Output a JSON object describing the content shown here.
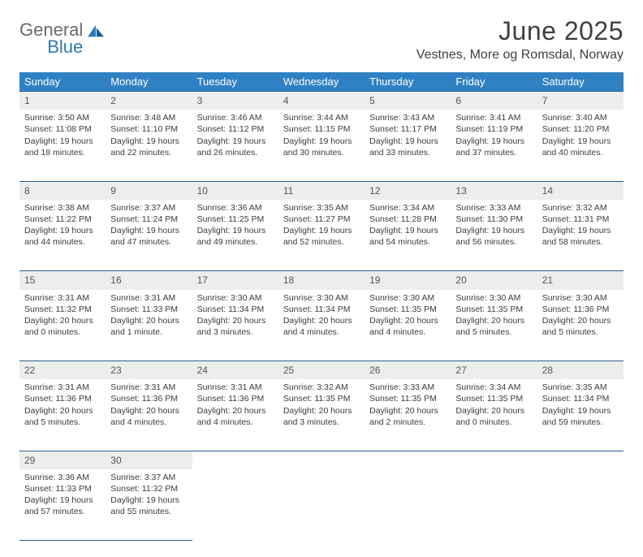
{
  "brand": {
    "general": "General",
    "blue": "Blue"
  },
  "title": "June 2025",
  "location": "Vestnes, More og Romsdal, Norway",
  "colors": {
    "header_bg": "#3081c3",
    "header_text": "#ffffff",
    "daynum_bg": "#eceded",
    "divider": "#2b5f8f",
    "logo_gray": "#6a6a6a",
    "logo_blue": "#2f79b9"
  },
  "weekdays": [
    "Sunday",
    "Monday",
    "Tuesday",
    "Wednesday",
    "Thursday",
    "Friday",
    "Saturday"
  ],
  "weeks": [
    [
      {
        "n": "1",
        "sr": "3:50 AM",
        "ss": "11:08 PM",
        "dl": "19 hours and 18 minutes."
      },
      {
        "n": "2",
        "sr": "3:48 AM",
        "ss": "11:10 PM",
        "dl": "19 hours and 22 minutes."
      },
      {
        "n": "3",
        "sr": "3:46 AM",
        "ss": "11:12 PM",
        "dl": "19 hours and 26 minutes."
      },
      {
        "n": "4",
        "sr": "3:44 AM",
        "ss": "11:15 PM",
        "dl": "19 hours and 30 minutes."
      },
      {
        "n": "5",
        "sr": "3:43 AM",
        "ss": "11:17 PM",
        "dl": "19 hours and 33 minutes."
      },
      {
        "n": "6",
        "sr": "3:41 AM",
        "ss": "11:19 PM",
        "dl": "19 hours and 37 minutes."
      },
      {
        "n": "7",
        "sr": "3:40 AM",
        "ss": "11:20 PM",
        "dl": "19 hours and 40 minutes."
      }
    ],
    [
      {
        "n": "8",
        "sr": "3:38 AM",
        "ss": "11:22 PM",
        "dl": "19 hours and 44 minutes."
      },
      {
        "n": "9",
        "sr": "3:37 AM",
        "ss": "11:24 PM",
        "dl": "19 hours and 47 minutes."
      },
      {
        "n": "10",
        "sr": "3:36 AM",
        "ss": "11:25 PM",
        "dl": "19 hours and 49 minutes."
      },
      {
        "n": "11",
        "sr": "3:35 AM",
        "ss": "11:27 PM",
        "dl": "19 hours and 52 minutes."
      },
      {
        "n": "12",
        "sr": "3:34 AM",
        "ss": "11:28 PM",
        "dl": "19 hours and 54 minutes."
      },
      {
        "n": "13",
        "sr": "3:33 AM",
        "ss": "11:30 PM",
        "dl": "19 hours and 56 minutes."
      },
      {
        "n": "14",
        "sr": "3:32 AM",
        "ss": "11:31 PM",
        "dl": "19 hours and 58 minutes."
      }
    ],
    [
      {
        "n": "15",
        "sr": "3:31 AM",
        "ss": "11:32 PM",
        "dl": "20 hours and 0 minutes."
      },
      {
        "n": "16",
        "sr": "3:31 AM",
        "ss": "11:33 PM",
        "dl": "20 hours and 1 minute."
      },
      {
        "n": "17",
        "sr": "3:30 AM",
        "ss": "11:34 PM",
        "dl": "20 hours and 3 minutes."
      },
      {
        "n": "18",
        "sr": "3:30 AM",
        "ss": "11:34 PM",
        "dl": "20 hours and 4 minutes."
      },
      {
        "n": "19",
        "sr": "3:30 AM",
        "ss": "11:35 PM",
        "dl": "20 hours and 4 minutes."
      },
      {
        "n": "20",
        "sr": "3:30 AM",
        "ss": "11:35 PM",
        "dl": "20 hours and 5 minutes."
      },
      {
        "n": "21",
        "sr": "3:30 AM",
        "ss": "11:36 PM",
        "dl": "20 hours and 5 minutes."
      }
    ],
    [
      {
        "n": "22",
        "sr": "3:31 AM",
        "ss": "11:36 PM",
        "dl": "20 hours and 5 minutes."
      },
      {
        "n": "23",
        "sr": "3:31 AM",
        "ss": "11:36 PM",
        "dl": "20 hours and 4 minutes."
      },
      {
        "n": "24",
        "sr": "3:31 AM",
        "ss": "11:36 PM",
        "dl": "20 hours and 4 minutes."
      },
      {
        "n": "25",
        "sr": "3:32 AM",
        "ss": "11:35 PM",
        "dl": "20 hours and 3 minutes."
      },
      {
        "n": "26",
        "sr": "3:33 AM",
        "ss": "11:35 PM",
        "dl": "20 hours and 2 minutes."
      },
      {
        "n": "27",
        "sr": "3:34 AM",
        "ss": "11:35 PM",
        "dl": "20 hours and 0 minutes."
      },
      {
        "n": "28",
        "sr": "3:35 AM",
        "ss": "11:34 PM",
        "dl": "19 hours and 59 minutes."
      }
    ],
    [
      {
        "n": "29",
        "sr": "3:36 AM",
        "ss": "11:33 PM",
        "dl": "19 hours and 57 minutes."
      },
      {
        "n": "30",
        "sr": "3:37 AM",
        "ss": "11:32 PM",
        "dl": "19 hours and 55 minutes."
      },
      null,
      null,
      null,
      null,
      null
    ]
  ],
  "labels": {
    "sunrise": "Sunrise:",
    "sunset": "Sunset:",
    "daylight": "Daylight:"
  }
}
